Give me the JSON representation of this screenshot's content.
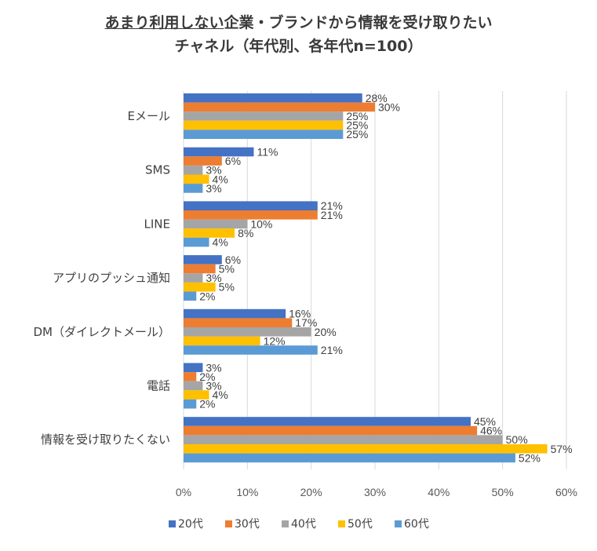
{
  "chart_data": {
    "type": "bar",
    "orientation": "horizontal",
    "title_underlined": "あまり利用しない",
    "title_rest": "企業・ブランドから情報を受け取りたい",
    "subtitle": "チャネル（年代別、各年代n=100）",
    "categories": [
      "Eメール",
      "SMS",
      "LINE",
      "アプリのプッシュ通知",
      "DM（ダイレクトメール）",
      "電話",
      "情報を受け取りたくない"
    ],
    "series": [
      {
        "name": "20代",
        "color": "#4472C4",
        "values": [
          28,
          11,
          21,
          6,
          16,
          3,
          45
        ]
      },
      {
        "name": "30代",
        "color": "#ED7D31",
        "values": [
          30,
          6,
          21,
          5,
          17,
          2,
          46
        ]
      },
      {
        "name": "40代",
        "color": "#A5A5A5",
        "values": [
          25,
          3,
          10,
          3,
          20,
          3,
          50
        ]
      },
      {
        "name": "50代",
        "color": "#FFC000",
        "values": [
          25,
          4,
          8,
          5,
          12,
          4,
          57
        ]
      },
      {
        "name": "60代",
        "color": "#5B9BD5",
        "values": [
          25,
          3,
          4,
          2,
          21,
          2,
          52
        ]
      }
    ],
    "value_suffix": "%",
    "xlim": [
      0,
      60
    ],
    "xticks": [
      "0%",
      "10%",
      "20%",
      "30%",
      "40%",
      "50%",
      "60%"
    ],
    "grid": true,
    "legend_position": "bottom"
  }
}
